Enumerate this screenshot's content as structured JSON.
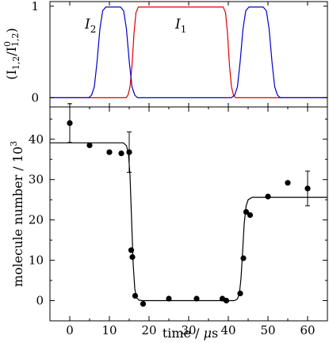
{
  "chart_data": [
    {
      "type": "line",
      "ylabel": "(I_{1,2}/I^0_{1,2})",
      "xlim": [
        -5,
        65
      ],
      "ylim": [
        -0.1,
        1.05
      ],
      "yticks": [
        0,
        1
      ],
      "series": [
        {
          "name": "I_1",
          "color": "#dd0000",
          "x": [
            -5,
            14.2,
            14.7,
            15.2,
            15.7,
            16.2,
            16.7,
            17.3,
            38.7,
            39.3,
            39.8,
            40.3,
            40.8,
            41.3,
            41.8,
            65
          ],
          "y": [
            0,
            0,
            0.03,
            0.12,
            0.35,
            0.7,
            0.93,
            0.99,
            0.99,
            0.93,
            0.7,
            0.35,
            0.12,
            0.03,
            0,
            0
          ]
        },
        {
          "name": "I_2",
          "color": "#0000cc",
          "x": [
            -5,
            4.8,
            5.5,
            6.2,
            6.9,
            7.6,
            8.3,
            9.1,
            12.8,
            13.6,
            14.3,
            15.0,
            15.7,
            16.4,
            17.1,
            40.8,
            41.6,
            42.3,
            43.0,
            43.7,
            44.4,
            45.2,
            48.8,
            49.6,
            50.3,
            51.0,
            51.7,
            52.4,
            53.1,
            65
          ],
          "y": [
            0,
            0,
            0.03,
            0.12,
            0.4,
            0.75,
            0.95,
            0.99,
            0.99,
            0.95,
            0.75,
            0.4,
            0.12,
            0.03,
            0,
            0,
            0.03,
            0.12,
            0.4,
            0.75,
            0.95,
            0.99,
            0.99,
            0.95,
            0.75,
            0.4,
            0.12,
            0.03,
            0,
            0
          ]
        }
      ]
    },
    {
      "type": "scatter",
      "xlabel": "time / μs",
      "ylabel": "molecule number / 10³",
      "xlim": [
        -5,
        65
      ],
      "ylim": [
        -5,
        48
      ],
      "xticks": [
        0,
        10,
        20,
        30,
        40,
        50,
        60
      ],
      "yticks": [
        0,
        10,
        20,
        30,
        40
      ],
      "points": {
        "x": [
          0,
          5,
          10,
          13,
          15,
          15.5,
          15.8,
          16.5,
          18.5,
          25,
          32,
          38.5,
          39.5,
          43,
          43.8,
          44.5,
          45.5,
          50,
          55,
          60
        ],
        "y": [
          44,
          38.5,
          36.8,
          36.5,
          36.8,
          12.5,
          10.8,
          1.2,
          -0.8,
          0.5,
          0.5,
          0.5,
          0,
          1.8,
          10.5,
          22,
          21.2,
          25.8,
          29.2,
          27.8
        ]
      },
      "error_bars": [
        {
          "x": 0,
          "y": 44,
          "err": 4.8
        },
        {
          "x": 15,
          "y": 36.8,
          "err": 5
        },
        {
          "x": 60,
          "y": 27.8,
          "err": 4.3
        }
      ],
      "fit": {
        "x": [
          -5,
          13.5,
          14.3,
          14.8,
          15.2,
          15.6,
          16.0,
          16.4,
          16.8,
          17.5,
          18.5,
          41.5,
          42.3,
          42.8,
          43.2,
          43.6,
          44.0,
          44.5,
          45.0,
          46.0,
          65
        ],
        "y": [
          39.1,
          39.1,
          38.4,
          36.5,
          31,
          20,
          9,
          3,
          0.8,
          0.1,
          0,
          0,
          0.4,
          1.8,
          5.5,
          12,
          19,
          23.5,
          25,
          25.6,
          25.6
        ]
      }
    }
  ],
  "labels": {
    "i1": "I",
    "i1_sub": "1",
    "i2": "I",
    "i2_sub": "2",
    "top_ylabel_open": "(I",
    "top_ylabel_sub1": "1,2",
    "top_ylabel_mid": "/I",
    "top_ylabel_sup": "0",
    "top_ylabel_sub2": "1,2",
    "top_ylabel_close": ")",
    "bottom_ylabel": "molecule number / 10",
    "bottom_ylabel_sup": "3",
    "xlabel_text": "time / ",
    "xlabel_mu": "μ",
    "xlabel_unit": "s"
  }
}
